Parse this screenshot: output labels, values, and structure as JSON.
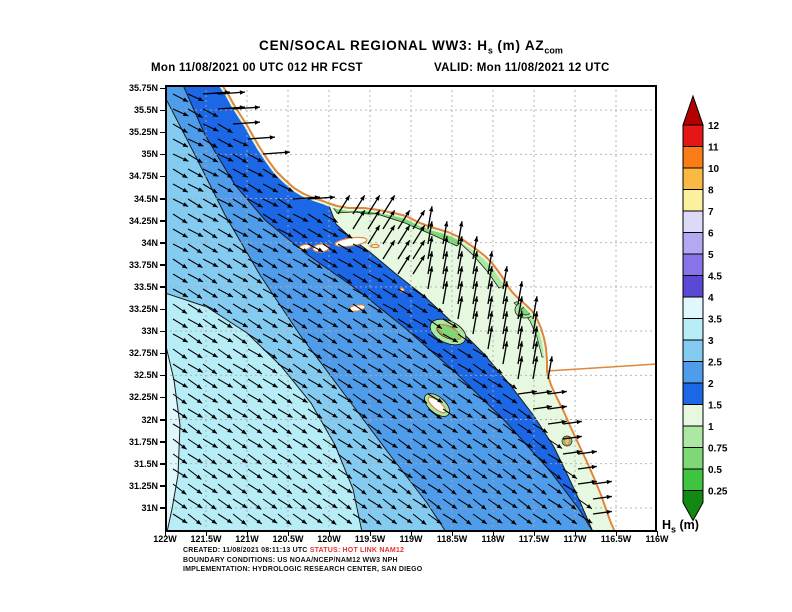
{
  "title": {
    "part1": "CEN/SOCAL REGIONAL WW3: H",
    "sub1": "s",
    "part2": " (m) AZ",
    "sub2": "com"
  },
  "subtitle": {
    "init": "Mon 11/08/2021 00 UTC 012 HR FCST",
    "valid": "VALID: Mon 11/08/2021 12 UTC"
  },
  "axes": {
    "lat_ticks": [
      "35.75N",
      "35.5N",
      "35.25N",
      "35N",
      "34.75N",
      "34.5N",
      "34.25N",
      "34N",
      "33.75N",
      "33.5N",
      "33.25N",
      "33N",
      "32.75N",
      "32.5N",
      "32.25N",
      "32N",
      "31.75N",
      "31.5N",
      "31.25N",
      "31N"
    ],
    "lon_ticks": [
      "122W",
      "121.5W",
      "121W",
      "120.5W",
      "120W",
      "119.5W",
      "119W",
      "118.5W",
      "118W",
      "117.5W",
      "117W",
      "116.5W",
      "116W"
    ]
  },
  "colorbar": {
    "tick_labels": [
      "12",
      "11",
      "10",
      "8",
      "7",
      "6",
      "5",
      "4.5",
      "4",
      "3.5",
      "3",
      "2.5",
      "2",
      "1.5",
      "1",
      "0.75",
      "0.5",
      "0.25"
    ],
    "segment_colors": [
      "#e51616",
      "#f97c16",
      "#fbb843",
      "#faf0a0",
      "#dcd9f9",
      "#b3a9f2",
      "#8973e8",
      "#5a49d4",
      "#e0f7fb",
      "#b6edf7",
      "#84cbf1",
      "#4f9ceb",
      "#1b67e6",
      "#e6f8e0",
      "#abe9a2",
      "#7ed877",
      "#3ec43e"
    ],
    "arrow_top_color": "#b30000",
    "arrow_bottom_color": "#128a12",
    "title_main": "H",
    "title_sub": "s",
    "title_unit": " (m)"
  },
  "map_colors": {
    "band_3_5_4": "#dff6fb",
    "band_3_3_5": "#b6edf7",
    "band_2_5_3": "#84cbf1",
    "band_2_2_5": "#4f9ceb",
    "band_1_5_2": "#1b67e6",
    "band_1_1_5": "#e6f8e0",
    "band_0_75_1": "#abe9a2",
    "band_0_5_0_75": "#7ed877",
    "band_0_25_0_5": "#3ec43e",
    "coastline": "#e0863a",
    "border_line": "#e0863a",
    "land": "#ffffff",
    "grid": "#aaaaaa",
    "contour": "#1b1b1b",
    "arrow": "#000000",
    "frame": "#000000"
  },
  "credits": {
    "line1_black": "CREATED: 11/08/2021 08:11:13 UTC  ",
    "line1_red": "STATUS: HOT LINK NAM12",
    "line2": "BOUNDARY CONDITIONS: US NOAA/NCEP/NAM12 WW3 NPH",
    "line3": "IMPLEMENTATION: HYDROLOGIC RESEARCH CENTER, SAN DIEGO"
  }
}
